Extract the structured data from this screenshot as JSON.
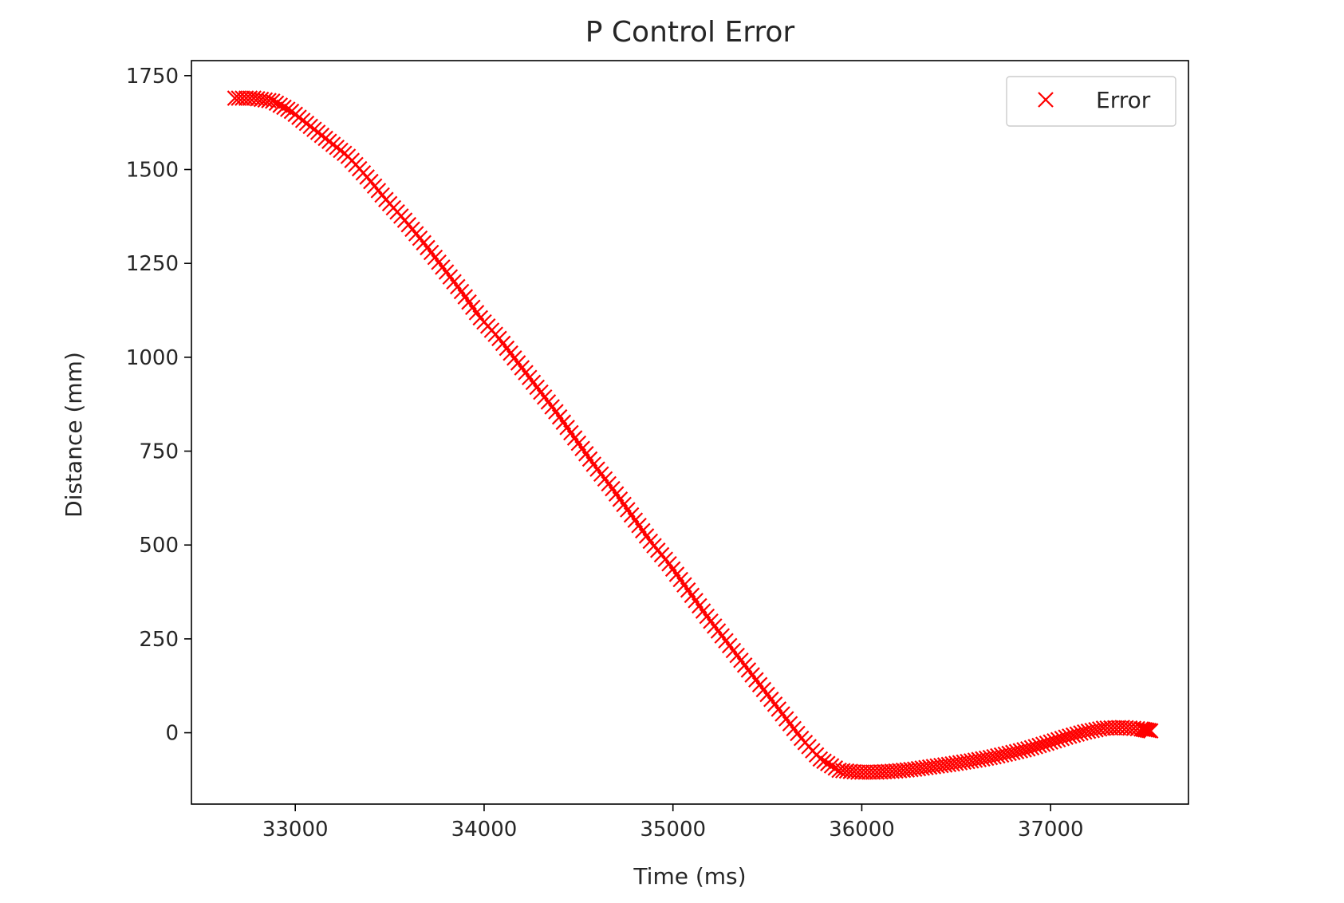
{
  "chart_data": {
    "type": "scatter",
    "title": "P Control Error",
    "xlabel": "Time (ms)",
    "ylabel": "Distance (mm)",
    "xlim": [
      32450,
      37730
    ],
    "ylim": [
      -190,
      1790
    ],
    "xticks": [
      33000,
      34000,
      35000,
      36000,
      37000
    ],
    "yticks": [
      0,
      250,
      500,
      750,
      1000,
      1250,
      1500,
      1750
    ],
    "grid": false,
    "legend": {
      "position": "top-right",
      "entries": [
        "Error"
      ]
    },
    "series": [
      {
        "name": "Error",
        "marker": "x",
        "color": "#ff0000",
        "points": [
          [
            32680,
            1690
          ],
          [
            32780,
            1690
          ],
          [
            32880,
            1682
          ],
          [
            32980,
            1655
          ],
          [
            33080,
            1615
          ],
          [
            33180,
            1575
          ],
          [
            33280,
            1535
          ],
          [
            33380,
            1480
          ],
          [
            33480,
            1420
          ],
          [
            33580,
            1365
          ],
          [
            33680,
            1305
          ],
          [
            33780,
            1240
          ],
          [
            33880,
            1175
          ],
          [
            33980,
            1105
          ],
          [
            34080,
            1050
          ],
          [
            34180,
            985
          ],
          [
            34280,
            920
          ],
          [
            34380,
            855
          ],
          [
            34480,
            785
          ],
          [
            34580,
            715
          ],
          [
            34680,
            650
          ],
          [
            34780,
            580
          ],
          [
            34880,
            510
          ],
          [
            34980,
            450
          ],
          [
            35080,
            380
          ],
          [
            35180,
            310
          ],
          [
            35280,
            245
          ],
          [
            35380,
            180
          ],
          [
            35480,
            115
          ],
          [
            35580,
            50
          ],
          [
            35680,
            -15
          ],
          [
            35780,
            -70
          ],
          [
            35880,
            -100
          ],
          [
            35980,
            -105
          ],
          [
            36080,
            -105
          ],
          [
            36180,
            -102
          ],
          [
            36280,
            -97
          ],
          [
            36380,
            -90
          ],
          [
            36480,
            -83
          ],
          [
            36580,
            -75
          ],
          [
            36680,
            -66
          ],
          [
            36780,
            -55
          ],
          [
            36880,
            -43
          ],
          [
            36980,
            -28
          ],
          [
            37080,
            -12
          ],
          [
            37180,
            2
          ],
          [
            37280,
            12
          ],
          [
            37380,
            14
          ],
          [
            37480,
            10
          ],
          [
            37530,
            5
          ]
        ]
      }
    ]
  }
}
